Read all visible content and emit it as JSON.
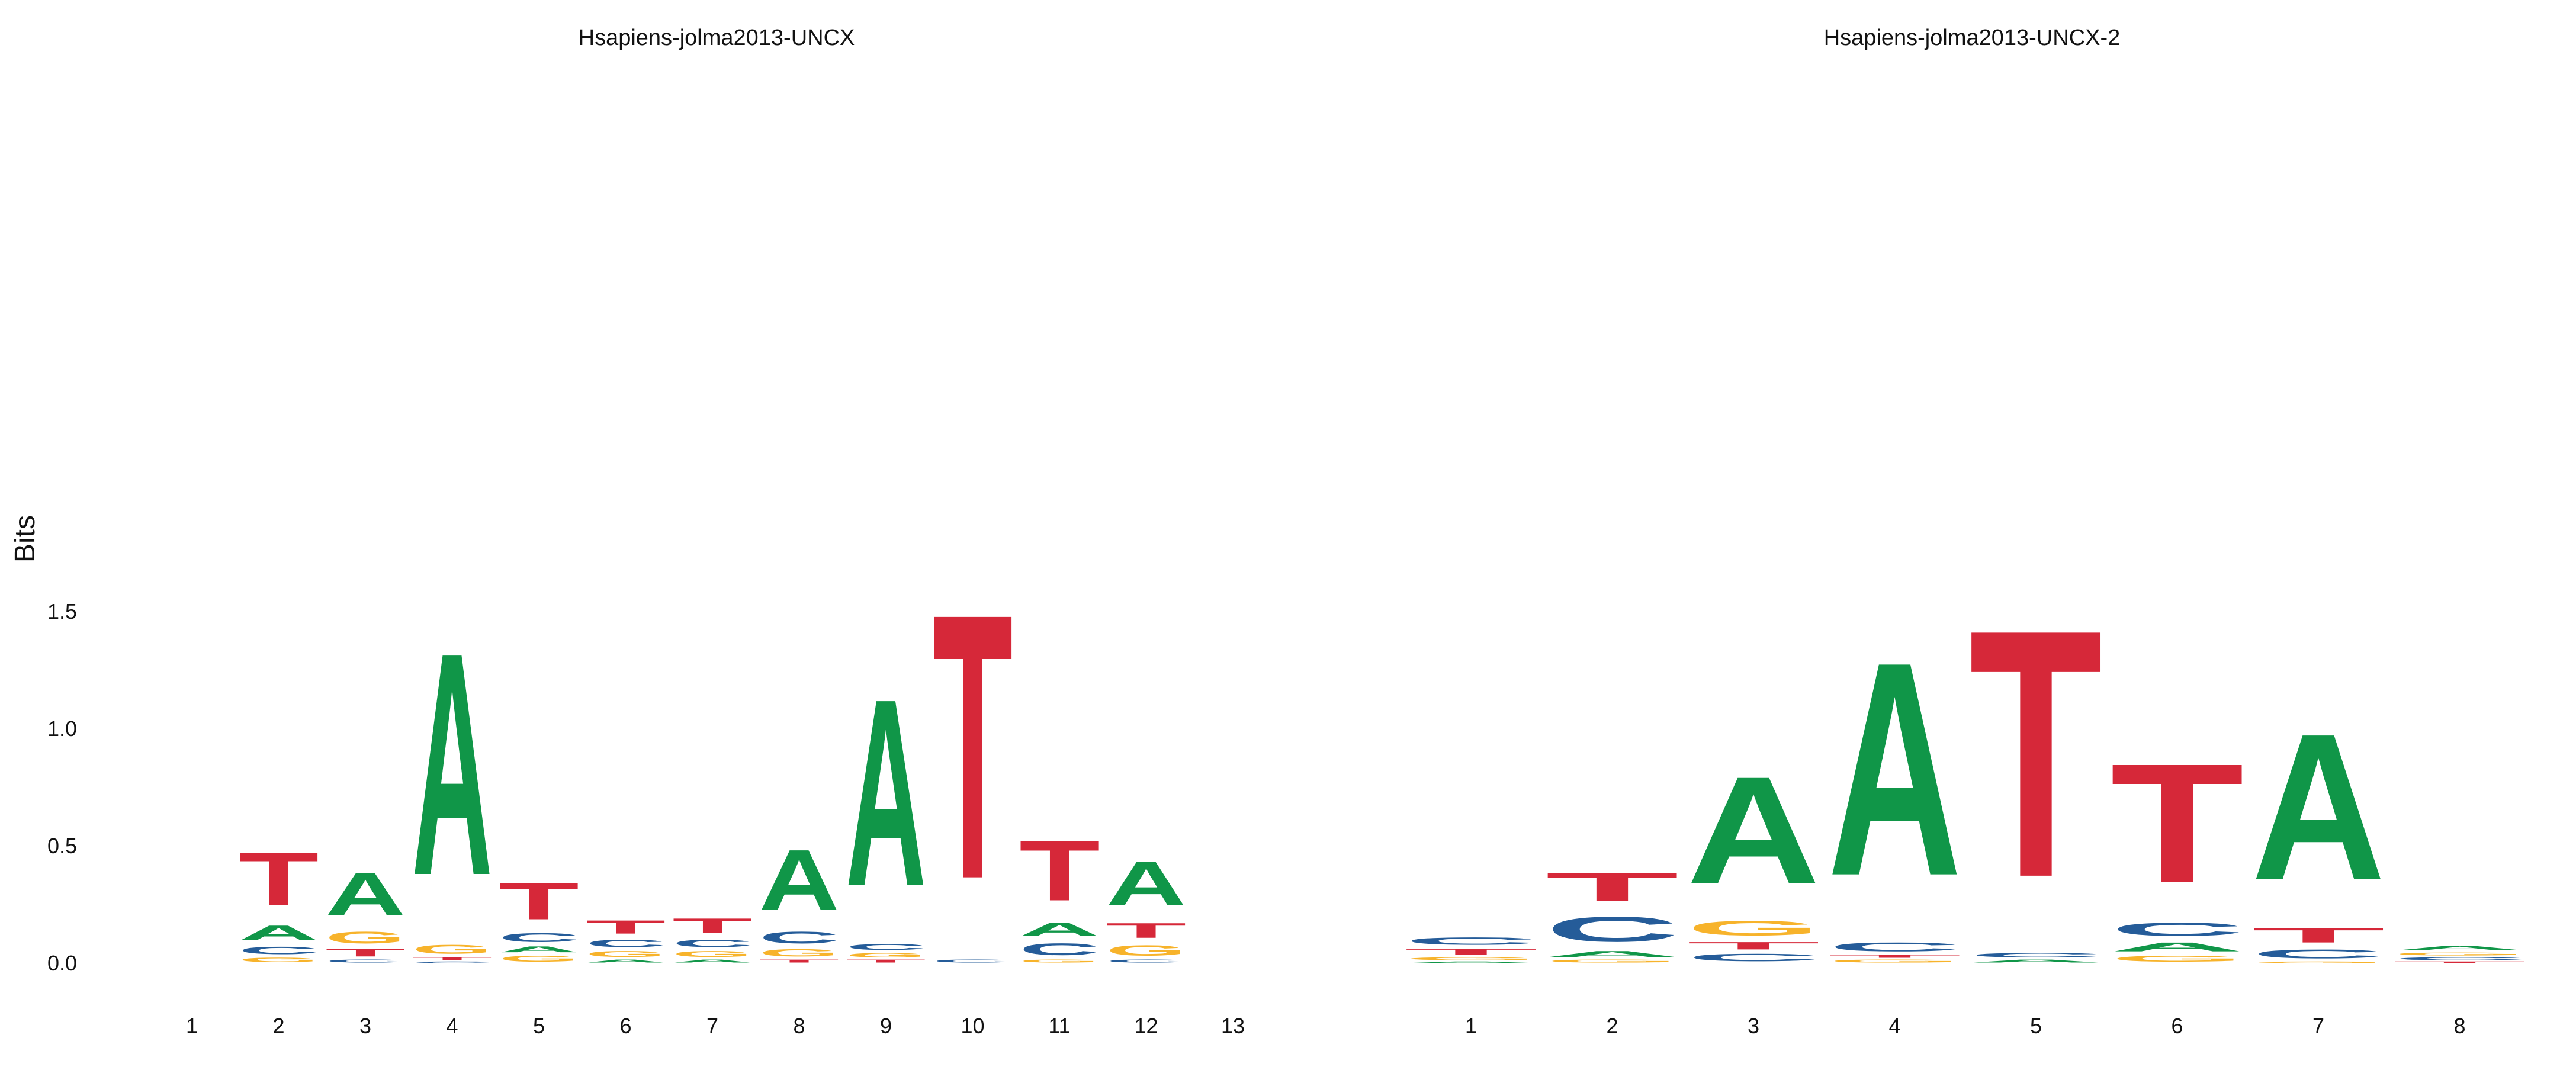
{
  "colors": {
    "A": "#109648",
    "C": "#255C99",
    "G": "#F7B32B",
    "T": "#D62839"
  },
  "chart_data": [
    {
      "type": "sequence-logo",
      "title": "Hsapiens-jolma2013-UNCX",
      "ylabel": "Bits",
      "ylim": [
        0,
        1.9
      ],
      "yticks": [
        "0.0",
        "0.5",
        "1.0",
        "1.5"
      ],
      "x_ticks": [
        "1",
        "2",
        "3",
        "4",
        "5",
        "6",
        "7",
        "8",
        "9",
        "10",
        "11",
        "12",
        "13"
      ],
      "positions": [
        [],
        [
          [
            "G",
            0.03
          ],
          [
            "C",
            0.05
          ],
          [
            "A",
            0.1
          ],
          [
            "T",
            0.36
          ]
        ],
        [
          [
            "C",
            0.02
          ],
          [
            "T",
            0.05
          ],
          [
            "G",
            0.08
          ],
          [
            "A",
            0.29
          ]
        ],
        [
          [
            "C",
            0.01
          ],
          [
            "T",
            0.02
          ],
          [
            "G",
            0.06
          ],
          [
            "A",
            1.51
          ]
        ],
        [
          [
            "G",
            0.04
          ],
          [
            "A",
            0.04
          ],
          [
            "C",
            0.06
          ],
          [
            "T",
            0.25
          ]
        ],
        [
          [
            "A",
            0.02
          ],
          [
            "G",
            0.04
          ],
          [
            "C",
            0.05
          ],
          [
            "T",
            0.09
          ]
        ],
        [
          [
            "A",
            0.02
          ],
          [
            "G",
            0.04
          ],
          [
            "C",
            0.05
          ],
          [
            "T",
            0.1
          ]
        ],
        [
          [
            "T",
            0.02
          ],
          [
            "G",
            0.05
          ],
          [
            "C",
            0.08
          ],
          [
            "A",
            0.41
          ]
        ],
        [
          [
            "T",
            0.02
          ],
          [
            "G",
            0.03
          ],
          [
            "C",
            0.04
          ],
          [
            "A",
            1.27
          ]
        ],
        [
          [
            "C",
            0.02
          ],
          [
            "T",
            1.8
          ]
        ],
        [
          [
            "G",
            0.02
          ],
          [
            "C",
            0.08
          ],
          [
            "A",
            0.09
          ],
          [
            "T",
            0.41
          ]
        ],
        [
          [
            "C",
            0.02
          ],
          [
            "G",
            0.07
          ],
          [
            "T",
            0.1
          ],
          [
            "A",
            0.3
          ]
        ],
        []
      ]
    },
    {
      "type": "sequence-logo",
      "title": "Hsapiens-jolma2013-UNCX-2",
      "ylabel": "",
      "ylim": [
        0,
        1.9
      ],
      "yticks": [],
      "x_ticks": [
        "1",
        "2",
        "3",
        "4",
        "5",
        "6",
        "7",
        "8"
      ],
      "positions": [
        [
          [
            "A",
            0.01
          ],
          [
            "G",
            0.02
          ],
          [
            "T",
            0.04
          ],
          [
            "C",
            0.05
          ]
        ],
        [
          [
            "G",
            0.02
          ],
          [
            "A",
            0.04
          ],
          [
            "C",
            0.17
          ],
          [
            "T",
            0.19
          ]
        ],
        [
          [
            "C",
            0.05
          ],
          [
            "T",
            0.05
          ],
          [
            "G",
            0.1
          ],
          [
            "A",
            0.73
          ]
        ],
        [
          [
            "G",
            0.02
          ],
          [
            "T",
            0.02
          ],
          [
            "C",
            0.06
          ],
          [
            "A",
            1.45
          ]
        ],
        [
          [
            "A",
            0.02
          ],
          [
            "C",
            0.03
          ],
          [
            "T",
            1.68
          ]
        ],
        [
          [
            "G",
            0.04
          ],
          [
            "A",
            0.06
          ],
          [
            "C",
            0.09
          ],
          [
            "T",
            0.81
          ]
        ],
        [
          [
            "G",
            0.01
          ],
          [
            "C",
            0.06
          ],
          [
            "T",
            0.1
          ],
          [
            "A",
            0.99
          ]
        ],
        [
          [
            "T",
            0.01
          ],
          [
            "C",
            0.02
          ],
          [
            "G",
            0.02
          ],
          [
            "A",
            0.03
          ]
        ]
      ]
    }
  ]
}
